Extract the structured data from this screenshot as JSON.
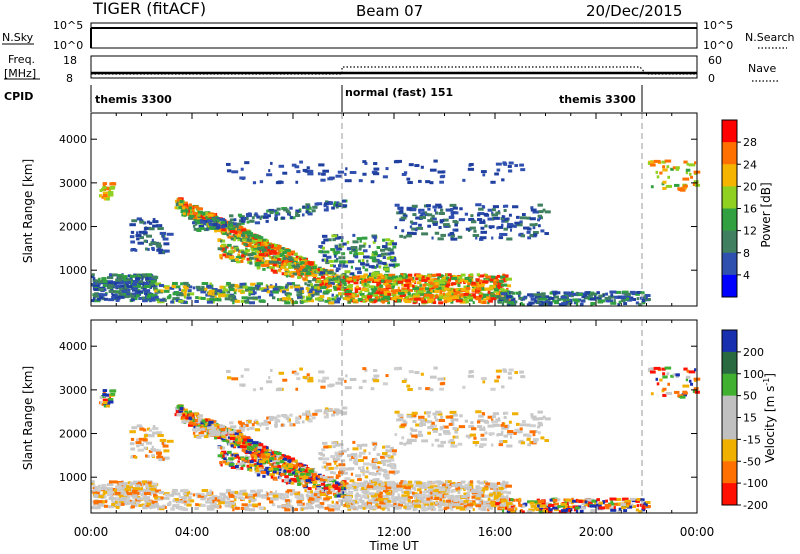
{
  "header": {
    "title": "TIGER (fitACF)",
    "beam": "Beam 07",
    "date": "20/Dec/2015"
  },
  "top_panels": {
    "nsky_label": "N.Sky",
    "nsky_ticks": [
      "10^5",
      "10^0"
    ],
    "nsearch_label": "N.Search",
    "freq_label": "Freq.",
    "freq_unit": "[MHz]",
    "freq_ticks": [
      "18",
      "8"
    ],
    "nave_label": "Nave",
    "nave_ticks": [
      "60",
      "0"
    ],
    "cpid_label": "CPID",
    "cpid_segments": [
      "themis 3300",
      "normal (fast) 151",
      "themis 3300"
    ]
  },
  "colorbars": {
    "power": {
      "label": "Power [dB]",
      "ticks": [
        "28",
        "24",
        "20",
        "16",
        "12",
        "8",
        "4"
      ],
      "colors": [
        "#ff0000",
        "#ff7000",
        "#f5b400",
        "#90d020",
        "#30a040",
        "#408060",
        "#3050b0",
        "#0000ff"
      ]
    },
    "velocity": {
      "label_main": "Velocity [m s",
      "label_exp": "-1",
      "label_end": "]",
      "ticks": [
        "200",
        "100",
        "50",
        "15",
        "-15",
        "-50",
        "-100",
        "-200"
      ],
      "colors": [
        "#1830b0",
        "#2a6a40",
        "#40b030",
        "#c0c0c0",
        "#c0c0c0",
        "#f0b000",
        "#ff7000",
        "#ff1000"
      ]
    }
  },
  "chart_data": [
    {
      "type": "heatmap",
      "name": "Power",
      "ylabel": "Slant Range [km]",
      "ylim": [
        180,
        4600
      ],
      "yticks": [
        "1000",
        "2000",
        "3000",
        "4000"
      ],
      "ytick_values": [
        1000,
        2000,
        3000,
        4000
      ],
      "xlim_hours": [
        0,
        24
      ],
      "mode_changes_hours": [
        10,
        22
      ],
      "echo_regions": [
        {
          "t": [
            0,
            10
          ],
          "range": [
            300,
            800
          ],
          "level": "mixed"
        },
        {
          "t": [
            3.5,
            9
          ],
          "range": [
            1000,
            2500
          ],
          "level": "high"
        },
        {
          "t": [
            10,
            16
          ],
          "range": [
            300,
            900
          ],
          "level": "high"
        },
        {
          "t": [
            12,
            18
          ],
          "range": [
            1800,
            2500
          ],
          "level": "low"
        }
      ]
    },
    {
      "type": "heatmap",
      "name": "Velocity",
      "ylabel": "Slant Range [km]",
      "ylim": [
        180,
        4600
      ],
      "yticks": [
        "1000",
        "2000",
        "3000",
        "4000"
      ],
      "ytick_values": [
        1000,
        2000,
        3000,
        4000
      ],
      "xlim_hours": [
        0,
        24
      ],
      "xticks": [
        "00:00",
        "04:00",
        "08:00",
        "12:00",
        "16:00",
        "20:00",
        "00:00"
      ],
      "xlabel": "Time UT",
      "mode_changes_hours": [
        10,
        22
      ]
    }
  ]
}
